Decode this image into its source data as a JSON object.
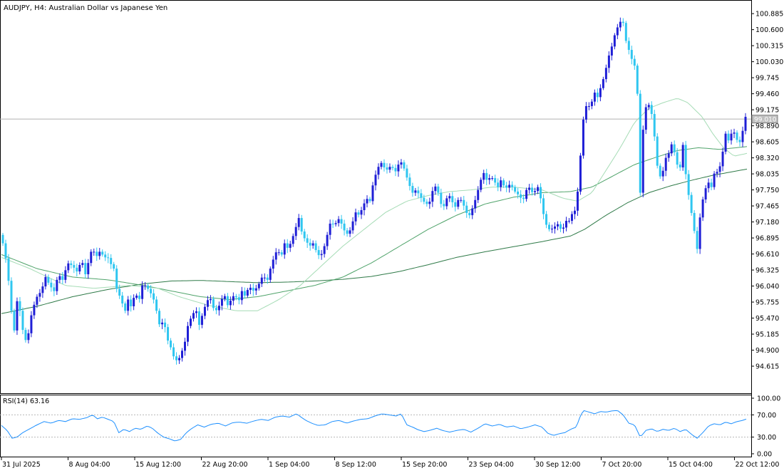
{
  "header": {
    "title": "AUDJPY, H4:  Australian Dollar vs Japanese Yen"
  },
  "price_axis": {
    "ticks": [
      "100.885",
      "100.600",
      "100.315",
      "100.030",
      "99.745",
      "99.460",
      "99.175",
      "98.890",
      "98.605",
      "98.320",
      "98.035",
      "97.750",
      "97.465",
      "97.180",
      "96.895",
      "96.610",
      "96.325",
      "96.040",
      "95.755",
      "95.470",
      "95.185",
      "94.900",
      "94.615"
    ],
    "current": "99.010"
  },
  "rsi": {
    "label": "RSI(14) 63.16",
    "ticks": [
      "100.00",
      "70.00",
      "30.00",
      "0.00"
    ]
  },
  "time_axis": {
    "labels": [
      "31 Jul 2025",
      "8 Aug 04:00",
      "15 Aug 12:00",
      "22 Aug 20:00",
      "1 Sep 04:00",
      "8 Sep 12:00",
      "15 Sep 20:00",
      "23 Sep 04:00",
      "30 Sep 12:00",
      "7 Oct 20:00",
      "15 Oct 04:00",
      "22 Oct 12:00"
    ]
  },
  "colors": {
    "bull": "#1f1fd6",
    "bear": "#2fc6f0",
    "ma_fast": "#a6dcb6",
    "ma_mid": "#4fa36a",
    "ma_slow": "#2f7a48",
    "rsi_line": "#1e90ff",
    "grid_text": "#000000"
  },
  "chart_data": {
    "type": "candlestick",
    "symbol": "AUDJPY",
    "timeframe": "H4",
    "ylim": [
      94.4,
      100.95
    ],
    "rsi_ylim": [
      0,
      100
    ],
    "rsi_levels": [
      70,
      30
    ],
    "current_price": 99.01,
    "price_path": [
      [
        0,
        96.95
      ],
      [
        4,
        96.8
      ],
      [
        10,
        96.4
      ],
      [
        16,
        95.6
      ],
      [
        20,
        95.25
      ],
      [
        25,
        95.9
      ],
      [
        30,
        95.4
      ],
      [
        35,
        95.05
      ],
      [
        40,
        95.2
      ],
      [
        45,
        95.6
      ],
      [
        52,
        95.85
      ],
      [
        58,
        95.95
      ],
      [
        64,
        96.2
      ],
      [
        70,
        96.05
      ],
      [
        76,
        95.95
      ],
      [
        82,
        96.25
      ],
      [
        88,
        96.15
      ],
      [
        95,
        96.45
      ],
      [
        102,
        96.4
      ],
      [
        108,
        96.3
      ],
      [
        115,
        96.5
      ],
      [
        120,
        96.25
      ],
      [
        126,
        96.55
      ],
      [
        130,
        96.75
      ],
      [
        134,
        96.55
      ],
      [
        138,
        96.6
      ],
      [
        142,
        96.7
      ],
      [
        146,
        96.5
      ],
      [
        150,
        96.6
      ],
      [
        155,
        96.45
      ],
      [
        160,
        96.35
      ],
      [
        165,
        95.9
      ],
      [
        170,
        95.85
      ],
      [
        175,
        95.55
      ],
      [
        180,
        95.8
      ],
      [
        185,
        95.65
      ],
      [
        190,
        95.95
      ],
      [
        195,
        95.75
      ],
      [
        200,
        96.05
      ],
      [
        205,
        96.05
      ],
      [
        210,
        95.95
      ],
      [
        215,
        95.85
      ],
      [
        220,
        95.6
      ],
      [
        225,
        95.3
      ],
      [
        230,
        95.45
      ],
      [
        235,
        95.1
      ],
      [
        240,
        94.95
      ],
      [
        245,
        94.75
      ],
      [
        250,
        94.7
      ],
      [
        255,
        94.85
      ],
      [
        260,
        95.05
      ],
      [
        265,
        95.4
      ],
      [
        270,
        95.5
      ],
      [
        275,
        95.65
      ],
      [
        280,
        95.35
      ],
      [
        285,
        95.55
      ],
      [
        290,
        95.75
      ],
      [
        295,
        95.85
      ],
      [
        300,
        95.65
      ],
      [
        305,
        95.6
      ],
      [
        310,
        95.75
      ],
      [
        315,
        95.9
      ],
      [
        320,
        95.7
      ],
      [
        325,
        95.8
      ],
      [
        330,
        95.9
      ],
      [
        335,
        95.75
      ],
      [
        340,
        95.95
      ],
      [
        345,
        95.85
      ],
      [
        350,
        96.05
      ],
      [
        355,
        95.95
      ],
      [
        360,
        96.0
      ],
      [
        365,
        96.1
      ],
      [
        370,
        96.25
      ],
      [
        375,
        96.1
      ],
      [
        380,
        96.35
      ],
      [
        385,
        96.55
      ],
      [
        390,
        96.7
      ],
      [
        395,
        96.55
      ],
      [
        400,
        96.8
      ],
      [
        405,
        96.7
      ],
      [
        410,
        96.85
      ],
      [
        415,
        97.05
      ],
      [
        420,
        97.25
      ],
      [
        425,
        96.95
      ],
      [
        430,
        96.85
      ],
      [
        435,
        96.75
      ],
      [
        440,
        96.8
      ],
      [
        445,
        96.65
      ],
      [
        450,
        96.55
      ],
      [
        455,
        96.7
      ],
      [
        460,
        96.95
      ],
      [
        465,
        97.2
      ],
      [
        470,
        97.1
      ],
      [
        475,
        97.25
      ],
      [
        480,
        97.15
      ],
      [
        485,
        97.0
      ],
      [
        490,
        96.95
      ],
      [
        495,
        97.15
      ],
      [
        500,
        97.35
      ],
      [
        505,
        97.3
      ],
      [
        510,
        97.45
      ],
      [
        515,
        97.6
      ],
      [
        520,
        97.55
      ],
      [
        525,
        97.9
      ],
      [
        530,
        98.1
      ],
      [
        535,
        98.25
      ],
      [
        540,
        98.15
      ],
      [
        545,
        98.1
      ],
      [
        550,
        98.2
      ],
      [
        555,
        98.05
      ],
      [
        560,
        98.2
      ],
      [
        565,
        98.25
      ],
      [
        570,
        98.05
      ],
      [
        575,
        97.85
      ],
      [
        580,
        97.7
      ],
      [
        585,
        97.75
      ],
      [
        590,
        97.65
      ],
      [
        595,
        97.55
      ],
      [
        600,
        97.5
      ],
      [
        605,
        97.55
      ],
      [
        610,
        97.85
      ],
      [
        615,
        97.75
      ],
      [
        620,
        97.5
      ],
      [
        625,
        97.45
      ],
      [
        630,
        97.7
      ],
      [
        635,
        97.55
      ],
      [
        640,
        97.45
      ],
      [
        645,
        97.6
      ],
      [
        650,
        97.55
      ],
      [
        655,
        97.35
      ],
      [
        660,
        97.3
      ],
      [
        665,
        97.45
      ],
      [
        670,
        97.65
      ],
      [
        675,
        97.9
      ],
      [
        680,
        98.05
      ],
      [
        685,
        97.9
      ],
      [
        690,
        98.0
      ],
      [
        695,
        97.9
      ],
      [
        700,
        97.8
      ],
      [
        705,
        97.95
      ],
      [
        710,
        97.75
      ],
      [
        715,
        97.85
      ],
      [
        720,
        97.8
      ],
      [
        725,
        97.7
      ],
      [
        730,
        97.65
      ],
      [
        735,
        97.55
      ],
      [
        740,
        97.75
      ],
      [
        745,
        97.8
      ],
      [
        750,
        97.65
      ],
      [
        755,
        97.85
      ],
      [
        760,
        97.6
      ],
      [
        765,
        97.25
      ],
      [
        770,
        97.05
      ],
      [
        775,
        97.05
      ],
      [
        780,
        97.1
      ],
      [
        785,
        97.15
      ],
      [
        790,
        97.0
      ],
      [
        795,
        97.2
      ],
      [
        800,
        97.2
      ],
      [
        805,
        97.35
      ],
      [
        810,
        97.4
      ],
      [
        815,
        98.2
      ],
      [
        820,
        99.0
      ],
      [
        825,
        99.3
      ],
      [
        830,
        99.2
      ],
      [
        835,
        99.5
      ],
      [
        840,
        99.4
      ],
      [
        845,
        99.6
      ],
      [
        850,
        99.8
      ],
      [
        855,
        100.1
      ],
      [
        860,
        100.3
      ],
      [
        865,
        100.55
      ],
      [
        870,
        100.7
      ],
      [
        875,
        100.8
      ],
      [
        880,
        100.4
      ],
      [
        885,
        100.2
      ],
      [
        890,
        100.0
      ],
      [
        895,
        99.9
      ],
      [
        900,
        97.7
      ],
      [
        905,
        99.1
      ],
      [
        910,
        99.3
      ],
      [
        915,
        99.2
      ],
      [
        920,
        98.7
      ],
      [
        925,
        98.05
      ],
      [
        930,
        97.95
      ],
      [
        935,
        98.3
      ],
      [
        940,
        98.4
      ],
      [
        945,
        98.6
      ],
      [
        950,
        98.3
      ],
      [
        955,
        98.05
      ],
      [
        960,
        98.55
      ],
      [
        965,
        97.9
      ],
      [
        970,
        97.5
      ],
      [
        975,
        97.1
      ],
      [
        980,
        96.7
      ],
      [
        985,
        97.4
      ],
      [
        990,
        97.7
      ],
      [
        995,
        97.9
      ],
      [
        1000,
        97.8
      ],
      [
        1005,
        98.1
      ],
      [
        1010,
        98.05
      ],
      [
        1015,
        98.35
      ],
      [
        1020,
        98.75
      ],
      [
        1025,
        98.6
      ],
      [
        1030,
        98.85
      ],
      [
        1035,
        98.65
      ],
      [
        1040,
        98.6
      ],
      [
        1045,
        98.85
      ],
      [
        1048,
        99.05
      ]
    ],
    "ma_fast": [
      [
        0,
        96.55
      ],
      [
        40,
        96.35
      ],
      [
        90,
        96.05
      ],
      [
        130,
        96.0
      ],
      [
        180,
        96.05
      ],
      [
        220,
        96.0
      ],
      [
        250,
        95.85
      ],
      [
        290,
        95.7
      ],
      [
        330,
        95.6
      ],
      [
        360,
        95.6
      ],
      [
        390,
        95.8
      ],
      [
        420,
        96.05
      ],
      [
        450,
        96.4
      ],
      [
        480,
        96.75
      ],
      [
        510,
        97.05
      ],
      [
        540,
        97.35
      ],
      [
        570,
        97.55
      ],
      [
        600,
        97.65
      ],
      [
        630,
        97.72
      ],
      [
        660,
        97.75
      ],
      [
        690,
        97.8
      ],
      [
        720,
        97.8
      ],
      [
        760,
        97.75
      ],
      [
        790,
        97.6
      ],
      [
        810,
        97.55
      ],
      [
        830,
        97.7
      ],
      [
        850,
        98.1
      ],
      [
        870,
        98.5
      ],
      [
        890,
        98.95
      ],
      [
        910,
        99.2
      ],
      [
        930,
        99.3
      ],
      [
        950,
        99.38
      ],
      [
        965,
        99.3
      ],
      [
        985,
        99.05
      ],
      [
        1000,
        98.75
      ],
      [
        1015,
        98.5
      ],
      [
        1030,
        98.35
      ],
      [
        1048,
        98.4
      ]
    ],
    "ma_mid": [
      [
        0,
        96.6
      ],
      [
        50,
        96.35
      ],
      [
        100,
        96.2
      ],
      [
        150,
        96.15
      ],
      [
        200,
        96.05
      ],
      [
        240,
        95.95
      ],
      [
        280,
        95.85
      ],
      [
        320,
        95.8
      ],
      [
        360,
        95.85
      ],
      [
        400,
        95.95
      ],
      [
        440,
        96.05
      ],
      [
        480,
        96.2
      ],
      [
        520,
        96.45
      ],
      [
        560,
        96.75
      ],
      [
        600,
        97.05
      ],
      [
        640,
        97.3
      ],
      [
        680,
        97.5
      ],
      [
        720,
        97.62
      ],
      [
        760,
        97.7
      ],
      [
        800,
        97.72
      ],
      [
        830,
        97.8
      ],
      [
        860,
        98.0
      ],
      [
        890,
        98.2
      ],
      [
        920,
        98.33
      ],
      [
        950,
        98.45
      ],
      [
        980,
        98.5
      ],
      [
        1010,
        98.47
      ],
      [
        1048,
        98.52
      ]
    ],
    "ma_slow": [
      [
        0,
        95.55
      ],
      [
        50,
        95.68
      ],
      [
        100,
        95.85
      ],
      [
        150,
        95.98
      ],
      [
        200,
        96.08
      ],
      [
        240,
        96.13
      ],
      [
        280,
        96.14
      ],
      [
        320,
        96.12
      ],
      [
        360,
        96.1
      ],
      [
        400,
        96.11
      ],
      [
        440,
        96.13
      ],
      [
        480,
        96.16
      ],
      [
        520,
        96.21
      ],
      [
        560,
        96.3
      ],
      [
        600,
        96.42
      ],
      [
        640,
        96.55
      ],
      [
        680,
        96.65
      ],
      [
        720,
        96.74
      ],
      [
        760,
        96.83
      ],
      [
        800,
        96.93
      ],
      [
        820,
        97.05
      ],
      [
        850,
        97.3
      ],
      [
        880,
        97.52
      ],
      [
        910,
        97.7
      ],
      [
        940,
        97.82
      ],
      [
        970,
        97.92
      ],
      [
        1000,
        98.01
      ],
      [
        1048,
        98.12
      ]
    ],
    "rsi_path": [
      [
        0,
        51
      ],
      [
        8,
        42
      ],
      [
        15,
        28
      ],
      [
        22,
        30
      ],
      [
        30,
        38
      ],
      [
        40,
        45
      ],
      [
        50,
        52
      ],
      [
        60,
        58
      ],
      [
        70,
        55
      ],
      [
        80,
        60
      ],
      [
        90,
        58
      ],
      [
        100,
        63
      ],
      [
        110,
        62
      ],
      [
        120,
        65
      ],
      [
        128,
        70
      ],
      [
        135,
        63
      ],
      [
        142,
        66
      ],
      [
        150,
        62
      ],
      [
        158,
        58
      ],
      [
        165,
        38
      ],
      [
        172,
        44
      ],
      [
        180,
        40
      ],
      [
        188,
        46
      ],
      [
        196,
        44
      ],
      [
        205,
        50
      ],
      [
        212,
        46
      ],
      [
        220,
        37
      ],
      [
        228,
        30
      ],
      [
        236,
        27
      ],
      [
        244,
        23
      ],
      [
        252,
        26
      ],
      [
        260,
        38
      ],
      [
        268,
        46
      ],
      [
        276,
        52
      ],
      [
        285,
        48
      ],
      [
        295,
        53
      ],
      [
        305,
        55
      ],
      [
        315,
        50
      ],
      [
        325,
        56
      ],
      [
        335,
        57
      ],
      [
        345,
        55
      ],
      [
        355,
        59
      ],
      [
        365,
        62
      ],
      [
        375,
        60
      ],
      [
        385,
        66
      ],
      [
        395,
        68
      ],
      [
        405,
        66
      ],
      [
        415,
        72
      ],
      [
        420,
        67
      ],
      [
        428,
        60
      ],
      [
        436,
        55
      ],
      [
        445,
        51
      ],
      [
        455,
        52
      ],
      [
        465,
        58
      ],
      [
        475,
        60
      ],
      [
        485,
        55
      ],
      [
        495,
        59
      ],
      [
        505,
        62
      ],
      [
        515,
        63
      ],
      [
        525,
        68
      ],
      [
        535,
        72
      ],
      [
        545,
        70
      ],
      [
        555,
        68
      ],
      [
        562,
        72
      ],
      [
        570,
        52
      ],
      [
        578,
        48
      ],
      [
        586,
        43
      ],
      [
        594,
        40
      ],
      [
        602,
        42
      ],
      [
        612,
        46
      ],
      [
        620,
        42
      ],
      [
        630,
        39
      ],
      [
        640,
        42
      ],
      [
        650,
        44
      ],
      [
        660,
        39
      ],
      [
        670,
        46
      ],
      [
        680,
        54
      ],
      [
        690,
        50
      ],
      [
        700,
        53
      ],
      [
        710,
        48
      ],
      [
        720,
        50
      ],
      [
        730,
        45
      ],
      [
        740,
        48
      ],
      [
        750,
        52
      ],
      [
        760,
        48
      ],
      [
        768,
        37
      ],
      [
        776,
        33
      ],
      [
        784,
        36
      ],
      [
        792,
        38
      ],
      [
        800,
        44
      ],
      [
        808,
        48
      ],
      [
        813,
        65
      ],
      [
        818,
        78
      ],
      [
        826,
        75
      ],
      [
        834,
        72
      ],
      [
        842,
        76
      ],
      [
        850,
        75
      ],
      [
        858,
        77
      ],
      [
        866,
        78
      ],
      [
        874,
        70
      ],
      [
        882,
        55
      ],
      [
        890,
        52
      ],
      [
        898,
        30
      ],
      [
        906,
        42
      ],
      [
        914,
        45
      ],
      [
        922,
        40
      ],
      [
        930,
        44
      ],
      [
        938,
        42
      ],
      [
        946,
        46
      ],
      [
        954,
        40
      ],
      [
        962,
        44
      ],
      [
        970,
        35
      ],
      [
        978,
        28
      ],
      [
        986,
        38
      ],
      [
        994,
        50
      ],
      [
        1002,
        54
      ],
      [
        1010,
        52
      ],
      [
        1018,
        57
      ],
      [
        1026,
        54
      ],
      [
        1034,
        58
      ],
      [
        1042,
        60
      ],
      [
        1048,
        63
      ]
    ]
  }
}
